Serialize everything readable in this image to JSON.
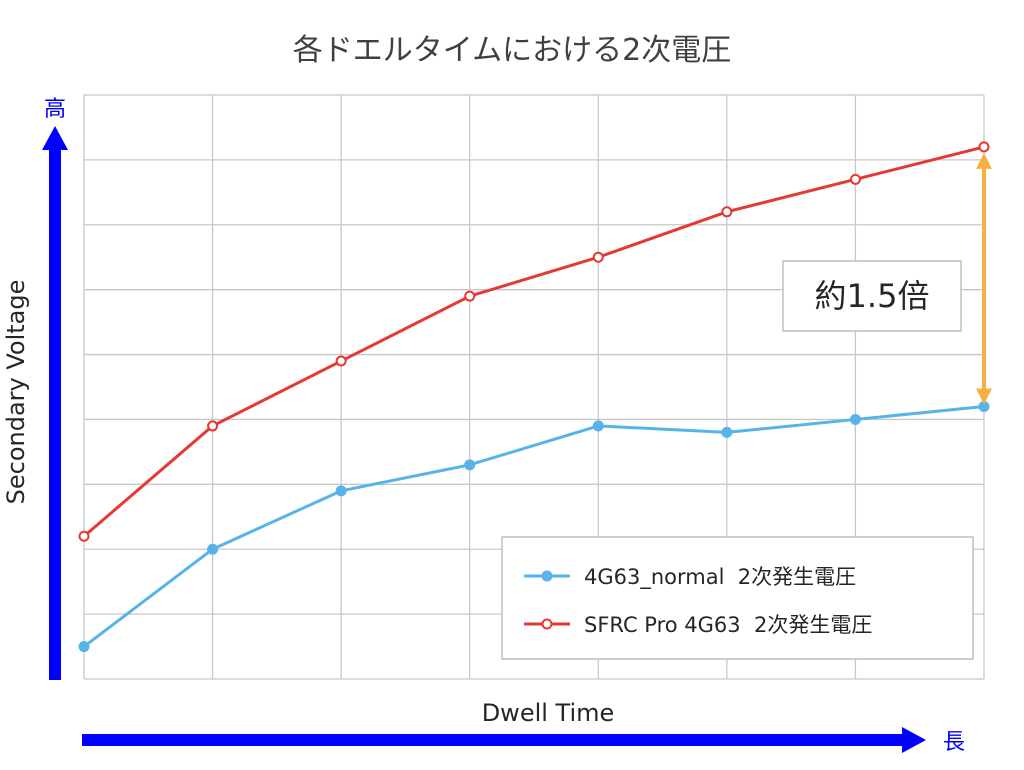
{
  "chart_data": {
    "type": "line",
    "title": "各ドエルタイムにおける2次電圧",
    "xlabel": "Dwell Time",
    "ylabel": "Secondary Voltage",
    "x_arrow_label": "長",
    "y_arrow_label": "高",
    "x": [
      1,
      2,
      3,
      4,
      5,
      6,
      7,
      8
    ],
    "xlim": [
      1,
      8
    ],
    "ylim": [
      0,
      9
    ],
    "grid": true,
    "legend_position": "bottom-right",
    "series": [
      {
        "name": "4G63_normal  2次発生電圧",
        "color": "#56b4e9",
        "values": [
          0.5,
          2.0,
          2.9,
          3.3,
          3.9,
          3.8,
          4.0,
          4.2
        ]
      },
      {
        "name": "SFRC Pro 4G63  2次発生電圧",
        "color": "#e53935",
        "values": [
          2.2,
          3.9,
          4.9,
          5.9,
          6.5,
          7.2,
          7.7,
          8.2
        ]
      }
    ],
    "annotation": {
      "text": "約1.5倍",
      "x": 8,
      "from": 4.2,
      "to": 8.2,
      "color": "#f5b041"
    },
    "arrow_color": "#0000ff"
  }
}
